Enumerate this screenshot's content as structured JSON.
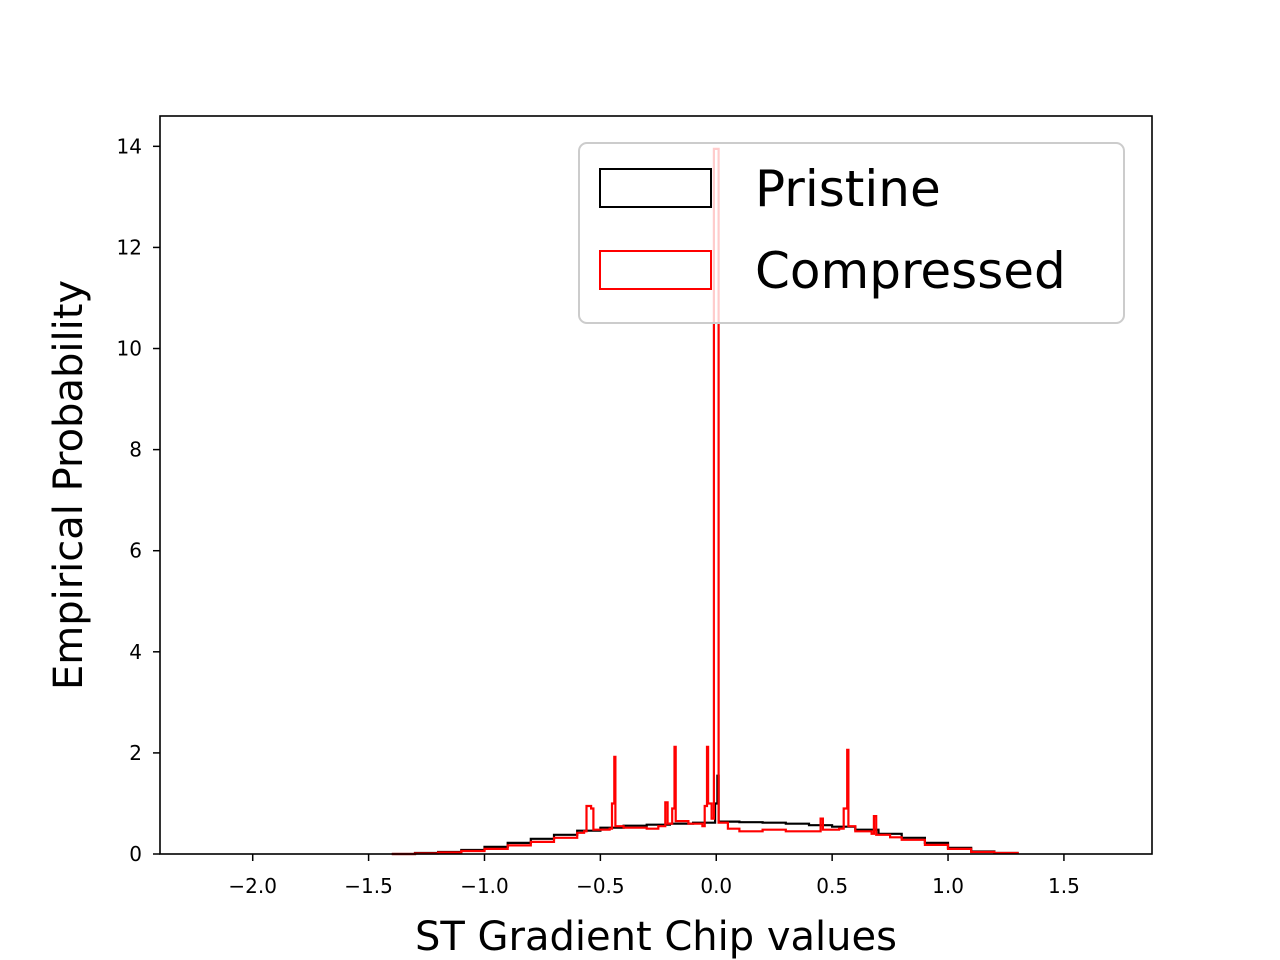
{
  "chart_data": {
    "type": "histogram-step",
    "title": "",
    "xlabel": "ST Gradient Chip values",
    "ylabel": "Empirical Probability",
    "xlim": [
      -2.4,
      1.88
    ],
    "ylim": [
      0,
      14.6
    ],
    "x_ticks": [
      -2.0,
      -1.5,
      -1.0,
      -0.5,
      0.0,
      0.5,
      1.0,
      1.5
    ],
    "x_tick_labels": [
      "−2.0",
      "−1.5",
      "−1.0",
      "−0.5",
      "0.0",
      "0.5",
      "1.0",
      "1.5"
    ],
    "y_ticks": [
      0,
      2,
      4,
      6,
      8,
      10,
      12,
      14
    ],
    "y_tick_labels": [
      "0",
      "2",
      "4",
      "6",
      "8",
      "10",
      "12",
      "14"
    ],
    "grid": false,
    "legend_position": "top-right",
    "series": [
      {
        "name": "Pristine",
        "color": "#000000",
        "points": [
          [
            -1.4,
            0.0
          ],
          [
            -1.3,
            0.02
          ],
          [
            -1.2,
            0.04
          ],
          [
            -1.1,
            0.08
          ],
          [
            -1.0,
            0.14
          ],
          [
            -0.9,
            0.22
          ],
          [
            -0.8,
            0.3
          ],
          [
            -0.7,
            0.38
          ],
          [
            -0.6,
            0.46
          ],
          [
            -0.5,
            0.52
          ],
          [
            -0.4,
            0.56
          ],
          [
            -0.3,
            0.58
          ],
          [
            -0.2,
            0.6
          ],
          [
            -0.1,
            0.62
          ],
          [
            -0.02,
            0.62
          ],
          [
            -0.005,
            1.0
          ],
          [
            0.0,
            1.0
          ],
          [
            0.005,
            1.55
          ],
          [
            0.01,
            0.64
          ],
          [
            0.1,
            0.63
          ],
          [
            0.2,
            0.62
          ],
          [
            0.3,
            0.6
          ],
          [
            0.4,
            0.57
          ],
          [
            0.5,
            0.54
          ],
          [
            0.6,
            0.48
          ],
          [
            0.7,
            0.4
          ],
          [
            0.8,
            0.32
          ],
          [
            0.9,
            0.22
          ],
          [
            1.0,
            0.12
          ],
          [
            1.1,
            0.05
          ],
          [
            1.2,
            0.02
          ],
          [
            1.3,
            0.0
          ]
        ]
      },
      {
        "name": "Compressed",
        "color": "#ff0000",
        "points": [
          [
            -1.4,
            0.0
          ],
          [
            -1.3,
            0.01
          ],
          [
            -1.2,
            0.03
          ],
          [
            -1.1,
            0.06
          ],
          [
            -1.0,
            0.1
          ],
          [
            -0.9,
            0.17
          ],
          [
            -0.8,
            0.24
          ],
          [
            -0.7,
            0.32
          ],
          [
            -0.6,
            0.42
          ],
          [
            -0.57,
            0.45
          ],
          [
            -0.56,
            0.95
          ],
          [
            -0.54,
            0.9
          ],
          [
            -0.53,
            0.48
          ],
          [
            -0.46,
            0.5
          ],
          [
            -0.45,
            1.0
          ],
          [
            -0.44,
            1.92
          ],
          [
            -0.435,
            0.55
          ],
          [
            -0.4,
            0.52
          ],
          [
            -0.3,
            0.5
          ],
          [
            -0.25,
            0.55
          ],
          [
            -0.22,
            1.02
          ],
          [
            -0.21,
            0.6
          ],
          [
            -0.19,
            0.9
          ],
          [
            -0.18,
            2.12
          ],
          [
            -0.175,
            0.65
          ],
          [
            -0.12,
            0.6
          ],
          [
            -0.06,
            0.55
          ],
          [
            -0.05,
            0.95
          ],
          [
            -0.04,
            2.12
          ],
          [
            -0.035,
            1.0
          ],
          [
            -0.02,
            0.7
          ],
          [
            -0.01,
            13.95
          ],
          [
            0.0,
            13.95
          ],
          [
            0.01,
            0.62
          ],
          [
            0.05,
            0.5
          ],
          [
            0.1,
            0.45
          ],
          [
            0.2,
            0.48
          ],
          [
            0.3,
            0.45
          ],
          [
            0.4,
            0.45
          ],
          [
            0.45,
            0.7
          ],
          [
            0.46,
            0.48
          ],
          [
            0.53,
            0.5
          ],
          [
            0.55,
            0.9
          ],
          [
            0.565,
            2.06
          ],
          [
            0.57,
            0.55
          ],
          [
            0.6,
            0.45
          ],
          [
            0.67,
            0.4
          ],
          [
            0.68,
            0.75
          ],
          [
            0.69,
            0.38
          ],
          [
            0.75,
            0.33
          ],
          [
            0.8,
            0.28
          ],
          [
            0.9,
            0.18
          ],
          [
            1.0,
            0.1
          ],
          [
            1.1,
            0.04
          ],
          [
            1.2,
            0.02
          ],
          [
            1.3,
            0.0
          ]
        ]
      }
    ]
  }
}
